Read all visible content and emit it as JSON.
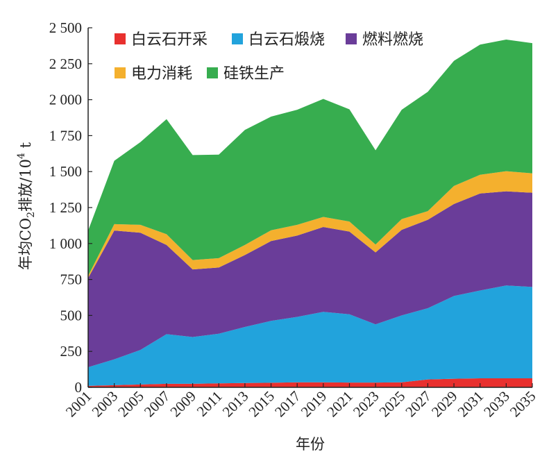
{
  "chart_data": {
    "type": "area",
    "stacked": true,
    "x": [
      2001,
      2003,
      2005,
      2007,
      2009,
      2011,
      2013,
      2015,
      2017,
      2019,
      2021,
      2023,
      2025,
      2027,
      2029,
      2031,
      2033,
      2035
    ],
    "xticks": [
      "2001",
      "2003",
      "2005",
      "2007",
      "2009",
      "2011",
      "2013",
      "2015",
      "2017",
      "2019",
      "2021",
      "2023",
      "2025",
      "2027",
      "2029",
      "2031",
      "2033",
      "2035"
    ],
    "yticks": [
      "0",
      "250",
      "500",
      "750",
      "1 000",
      "1 250",
      "1 500",
      "1 750",
      "2 000",
      "2 250",
      "2 500"
    ],
    "ylim": [
      0,
      2500
    ],
    "xlabel": "年份",
    "ylabel": "年均CO",
    "ylabel_sub": "2",
    "ylabel_tail": "排放/10",
    "ylabel_sup": "4",
    "ylabel_unit": " t",
    "legend_position": "top-left",
    "series": [
      {
        "name": "白云石开采",
        "color": "#e8302e",
        "values": [
          10,
          15,
          20,
          25,
          25,
          28,
          30,
          32,
          35,
          35,
          33,
          33,
          35,
          55,
          60,
          63,
          63,
          63
        ]
      },
      {
        "name": "白云石煅烧",
        "color": "#22a3dc",
        "values": [
          130,
          180,
          240,
          345,
          325,
          345,
          390,
          430,
          455,
          490,
          475,
          405,
          465,
          495,
          575,
          610,
          645,
          635
        ]
      },
      {
        "name": "燃料燃烧",
        "color": "#6a3d99",
        "values": [
          620,
          895,
          815,
          620,
          470,
          460,
          500,
          555,
          565,
          590,
          575,
          500,
          595,
          615,
          640,
          675,
          655,
          655
        ]
      },
      {
        "name": "电力消耗",
        "color": "#f4b02e",
        "values": [
          15,
          45,
          55,
          75,
          65,
          65,
          70,
          75,
          75,
          70,
          70,
          55,
          75,
          60,
          125,
          130,
          140,
          135
        ]
      },
      {
        "name": "硅铁生产",
        "color": "#37ad4f",
        "values": [
          315,
          440,
          575,
          800,
          730,
          720,
          800,
          790,
          800,
          820,
          780,
          655,
          760,
          830,
          870,
          905,
          915,
          905
        ]
      }
    ]
  }
}
